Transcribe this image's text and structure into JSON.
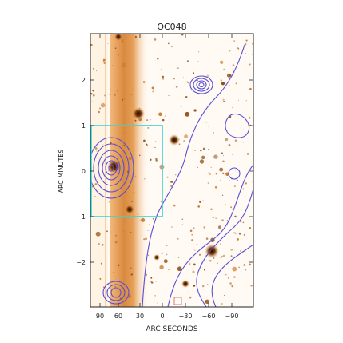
{
  "title": "OC048",
  "xlabel": "ARC SECONDS",
  "ylabel": "ARC MINUTES",
  "xticks": [
    "90",
    "60",
    "30",
    "0",
    "−30",
    "−60",
    "−90"
  ],
  "yticks": [
    "2",
    "1",
    "0",
    "−1",
    "−2"
  ],
  "colors": {
    "contour": "#5a4fd6",
    "box": "#35d6d6",
    "image_light": "#fff6ec",
    "image_dark": "#c9772e",
    "frame": "#222222"
  }
}
